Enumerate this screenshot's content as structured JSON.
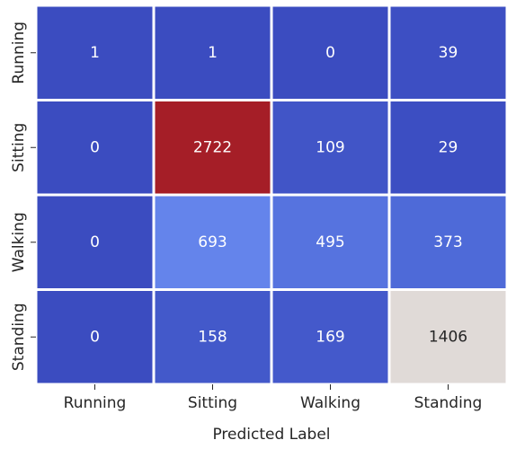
{
  "chart_data": {
    "type": "heatmap",
    "title": "",
    "xlabel": "Predicted Label",
    "ylabel": "",
    "x_categories": [
      "Running",
      "Sitting",
      "Walking",
      "Standing"
    ],
    "y_categories": [
      "Running",
      "Sitting",
      "Walking",
      "Standing"
    ],
    "values": [
      [
        1,
        1,
        0,
        39
      ],
      [
        0,
        2722,
        109,
        29
      ],
      [
        0,
        693,
        495,
        373
      ],
      [
        0,
        158,
        169,
        1406
      ]
    ],
    "colormap": "coolwarm",
    "color_range": [
      0,
      2722
    ],
    "legend": "none",
    "grid": false
  }
}
